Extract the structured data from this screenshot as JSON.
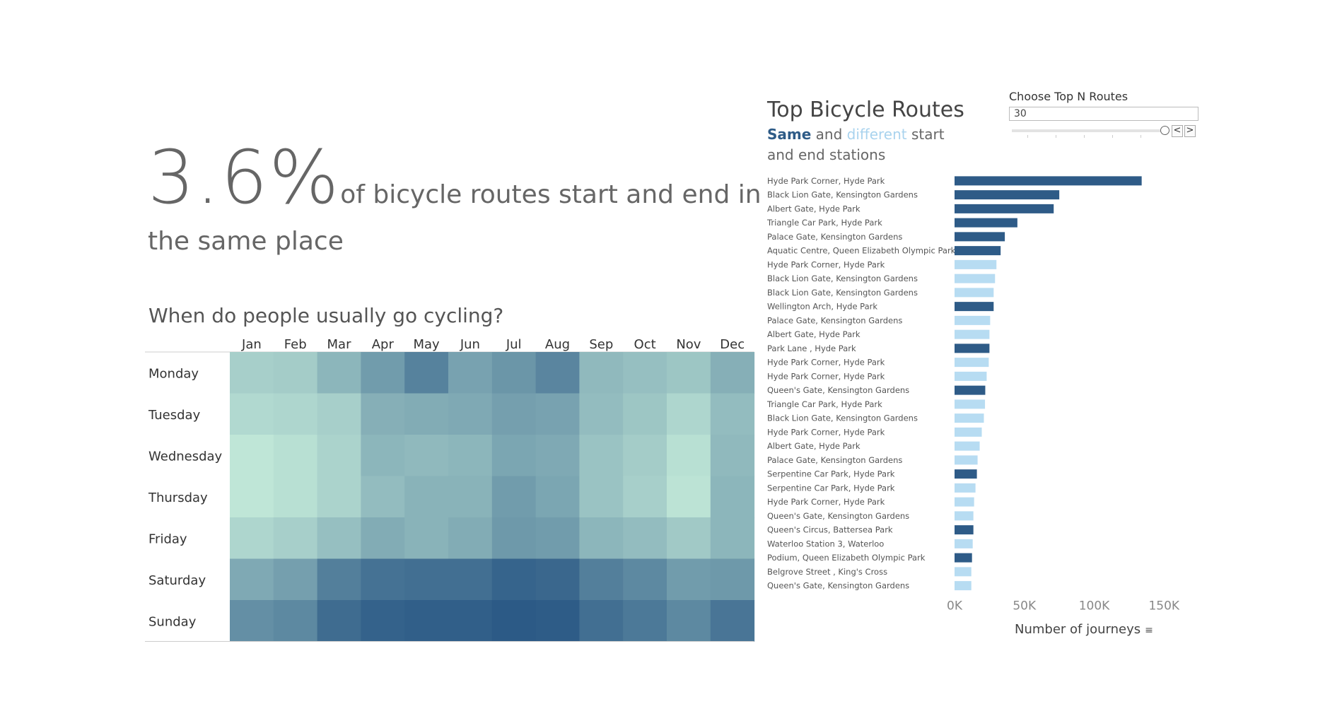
{
  "headline": {
    "stat": "3.6%",
    "text": "of bicycle routes start and end in the same place"
  },
  "heatmap": {
    "title": "When do people usually go cycling?"
  },
  "routes": {
    "title": "Top Bicycle Routes",
    "subtitle_same": "Same",
    "subtitle_and": " and ",
    "subtitle_different": "different",
    "subtitle_rest": " start and end stations",
    "x_axis_title": "Number of journeys"
  },
  "topn": {
    "label": "Choose Top N Routes",
    "value": "30",
    "prev_label": "<",
    "next_label": ">"
  },
  "colors": {
    "same": "#2e5b87",
    "different": "#b7dcf2"
  },
  "chart_data": [
    {
      "type": "heatmap",
      "title": "When do people usually go cycling?",
      "x_categories": [
        "Jan",
        "Feb",
        "Mar",
        "Apr",
        "May",
        "Jun",
        "Jul",
        "Aug",
        "Sep",
        "Oct",
        "Nov",
        "Dec"
      ],
      "y_categories": [
        "Monday",
        "Tuesday",
        "Wednesday",
        "Thursday",
        "Friday",
        "Saturday",
        "Sunday"
      ],
      "values": [
        [
          0.32,
          0.34,
          0.48,
          0.64,
          0.8,
          0.6,
          0.68,
          0.78,
          0.46,
          0.42,
          0.38,
          0.52
        ],
        [
          0.26,
          0.28,
          0.32,
          0.52,
          0.54,
          0.56,
          0.62,
          0.6,
          0.44,
          0.38,
          0.28,
          0.44
        ],
        [
          0.18,
          0.22,
          0.3,
          0.48,
          0.46,
          0.48,
          0.58,
          0.56,
          0.4,
          0.34,
          0.22,
          0.46
        ],
        [
          0.18,
          0.22,
          0.3,
          0.44,
          0.5,
          0.5,
          0.64,
          0.58,
          0.4,
          0.32,
          0.2,
          0.48
        ],
        [
          0.28,
          0.32,
          0.42,
          0.54,
          0.5,
          0.54,
          0.66,
          0.64,
          0.48,
          0.44,
          0.36,
          0.48
        ],
        [
          0.56,
          0.62,
          0.82,
          0.9,
          0.92,
          0.92,
          0.99,
          0.97,
          0.82,
          0.76,
          0.64,
          0.66
        ],
        [
          0.72,
          0.76,
          0.94,
          1.0,
          1.02,
          1.02,
          1.05,
          1.04,
          0.92,
          0.86,
          0.76,
          0.88
        ]
      ],
      "color_low": "#bfe6d7",
      "color_high": "#2c5a86"
    },
    {
      "type": "bar",
      "orientation": "horizontal",
      "title": "Top Bicycle Routes",
      "xlabel": "Number of journeys",
      "xlim": [
        0,
        160000
      ],
      "x_ticks": [
        0,
        50000,
        100000,
        150000
      ],
      "x_tick_labels": [
        "0K",
        "50K",
        "100K",
        "150K"
      ],
      "categories": [
        "Hyde Park Corner, Hyde Park",
        "Black Lion Gate, Kensington Gardens",
        "Albert Gate, Hyde Park",
        "Triangle Car Park, Hyde Park",
        "Palace Gate, Kensington Gardens",
        "Aquatic Centre, Queen Elizabeth Olympic Park",
        "Hyde Park Corner, Hyde Park",
        "Black Lion Gate, Kensington Gardens",
        "Black Lion Gate, Kensington Gardens",
        "Wellington Arch, Hyde Park",
        "Palace Gate, Kensington Gardens",
        "Albert Gate, Hyde Park",
        "Park Lane , Hyde Park",
        "Hyde Park Corner, Hyde Park",
        "Hyde Park Corner, Hyde Park",
        "Queen's Gate, Kensington Gardens",
        "Triangle Car Park, Hyde Park",
        "Black Lion Gate, Kensington Gardens",
        "Hyde Park Corner, Hyde Park",
        "Albert Gate, Hyde Park",
        "Palace Gate, Kensington Gardens",
        "Serpentine Car Park, Hyde Park",
        "Serpentine Car Park, Hyde Park",
        "Hyde Park Corner, Hyde Park",
        "Queen's Gate, Kensington Gardens",
        "Queen's Circus, Battersea Park",
        "Waterloo Station 3, Waterloo",
        "Podium, Queen Elizabeth Olympic Park",
        "Belgrove Street , King's Cross",
        "Queen's Gate, Kensington Gardens"
      ],
      "values": [
        134000,
        75000,
        71000,
        45000,
        36000,
        33000,
        30000,
        29000,
        28000,
        28000,
        25500,
        25000,
        25000,
        24500,
        23000,
        22000,
        21800,
        21000,
        19500,
        18000,
        16500,
        16000,
        15000,
        14000,
        13500,
        13500,
        13000,
        12500,
        12000,
        12000
      ],
      "same_station": [
        true,
        true,
        true,
        true,
        true,
        true,
        false,
        false,
        false,
        true,
        false,
        false,
        true,
        false,
        false,
        true,
        false,
        false,
        false,
        false,
        false,
        true,
        false,
        false,
        false,
        true,
        false,
        true,
        false,
        false
      ]
    }
  ]
}
